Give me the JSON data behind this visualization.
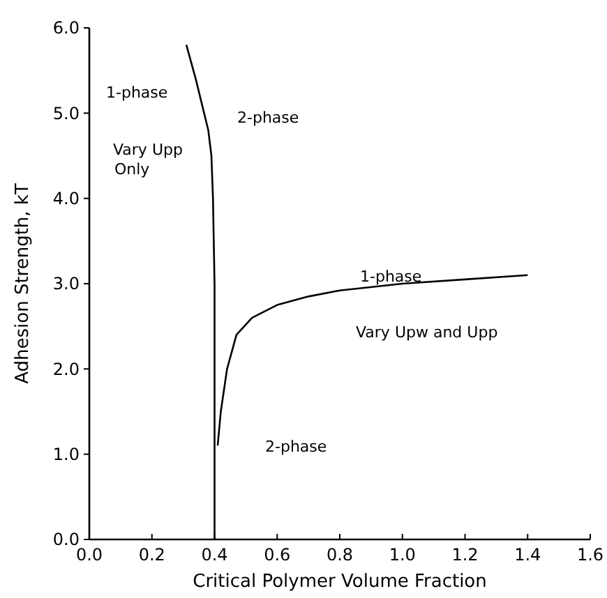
{
  "chart_data": {
    "type": "line",
    "xlabel": "Critical Polymer Volume Fraction",
    "ylabel": "Adhesion Strength, kT",
    "xlim": [
      0,
      1.6
    ],
    "ylim": [
      0,
      6
    ],
    "xticks": [
      {
        "value": 0,
        "label": "0.0"
      },
      {
        "value": 0.2,
        "label": "0.2"
      },
      {
        "value": 0.4,
        "label": "0.4"
      },
      {
        "value": 0.6,
        "label": "0.6"
      },
      {
        "value": 0.8,
        "label": "0.8"
      },
      {
        "value": 1,
        "label": "1.0"
      },
      {
        "value": 1.2,
        "label": "1.2"
      },
      {
        "value": 1.4,
        "label": "1.4"
      },
      {
        "value": 1.6,
        "label": "1.6"
      }
    ],
    "yticks": [
      {
        "value": 0,
        "label": "0.0"
      },
      {
        "value": 1,
        "label": "1.0"
      },
      {
        "value": 2,
        "label": "2.0"
      },
      {
        "value": 3,
        "label": "3.0"
      },
      {
        "value": 4,
        "label": "4.0"
      },
      {
        "value": 5,
        "label": "5.0"
      },
      {
        "value": 6,
        "label": "6.0"
      }
    ],
    "grid": false,
    "marker": "none",
    "line_style": "solid",
    "series": [
      {
        "color": "#000000",
        "x": [
          0.31,
          0.34,
          0.36,
          0.38,
          0.39,
          0.395,
          0.4,
          0.4
        ],
        "values": [
          5.8,
          5.4,
          5.1,
          4.8,
          4.5,
          4.0,
          3.0,
          0
        ]
      },
      {
        "color": "#000000",
        "x": [
          0.41,
          0.42,
          0.44,
          0.47,
          0.52,
          0.6,
          0.7,
          0.8,
          1.0,
          1.2,
          1.4
        ],
        "values": [
          1.1,
          1.5,
          2.0,
          2.4,
          2.6,
          2.75,
          2.85,
          2.92,
          3.0,
          3.05,
          3.1
        ]
      }
    ],
    "annotations": [
      "1-phase",
      "2-phase",
      "Vary Upp",
      "Only",
      "1-phase",
      "Vary Upw and Upp",
      "2-phase"
    ]
  }
}
